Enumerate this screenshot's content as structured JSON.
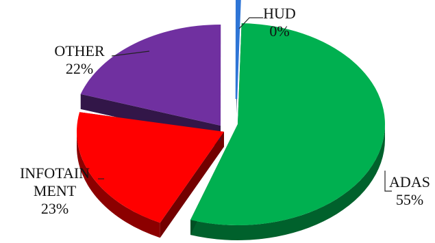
{
  "chart_data": {
    "type": "pie",
    "style": "3d-exploded",
    "title": "",
    "slices": [
      {
        "name": "ADAS",
        "label_lines": [
          "ADAS"
        ],
        "percent_label": "55%",
        "value": 55,
        "color": "#00b050"
      },
      {
        "name": "INFOTAINMENT",
        "label_lines": [
          "INFOTAIN",
          "MENT"
        ],
        "percent_label": "23%",
        "value": 23,
        "color": "#ff0000"
      },
      {
        "name": "OTHER",
        "label_lines": [
          "OTHER"
        ],
        "percent_label": "22%",
        "value": 22,
        "color": "#7030a0"
      },
      {
        "name": "HUD",
        "label_lines": [
          "HUD"
        ],
        "percent_label": "0%",
        "value": 0.4,
        "color": "#2e75d6"
      }
    ],
    "legend": "none",
    "data_labels": "outside with leader lines"
  }
}
